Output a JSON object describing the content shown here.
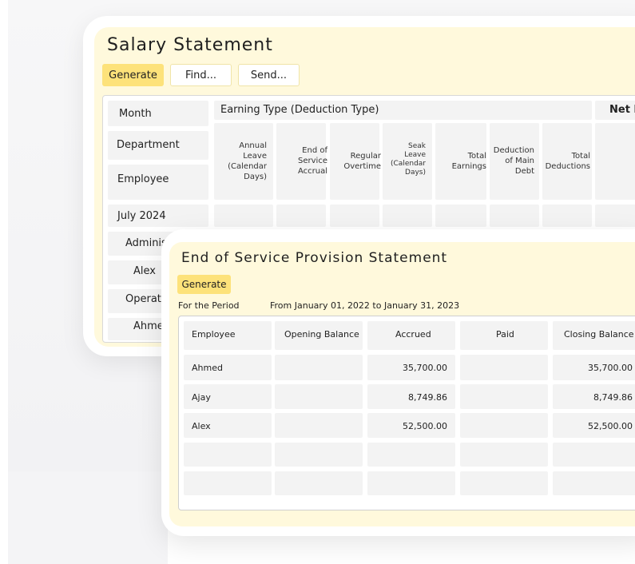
{
  "salary": {
    "title": "Salary Statement",
    "buttons": {
      "generate": "Generate",
      "find": "Find...",
      "send": "Send..."
    },
    "row_labels": {
      "month": "Month",
      "department": "Department",
      "employee": "Employee",
      "period": "July 2024",
      "dept1": "Administ",
      "emp1": "Alex",
      "dept2": "Operati",
      "emp2": "Ahme"
    },
    "group_header": "Earning Type (Deduction Type)",
    "net_header": "Net P",
    "columns": [
      "Annual\nLeave\n(Calendar\nDays)",
      "End of\nService\nAccrual",
      "Regular\nOvertime",
      "Seak\nLeave\n(Calendar\nDays)",
      "Total\nEarnings",
      "Deduction\nof Main\nDebt",
      "Total\nDeductions"
    ]
  },
  "eos": {
    "title": "End of Service Provision Statement",
    "generate": "Generate",
    "period_label": "For the Period",
    "period_value": "From January 01, 2022 to January 31, 2023",
    "headers": {
      "employee": "Employee",
      "opening": "Opening Balance",
      "accrued": "Accrued",
      "paid": "Paid",
      "closing": "Closing Balance"
    },
    "rows": [
      {
        "employee": "Ahmed",
        "accrued": "35,700.00",
        "closing": "35,700.00"
      },
      {
        "employee": "Ajay",
        "accrued": "8,749.86",
        "closing": "8,749.86"
      },
      {
        "employee": "Alex",
        "accrued": "52,500.00",
        "closing": "52,500.00"
      }
    ]
  }
}
